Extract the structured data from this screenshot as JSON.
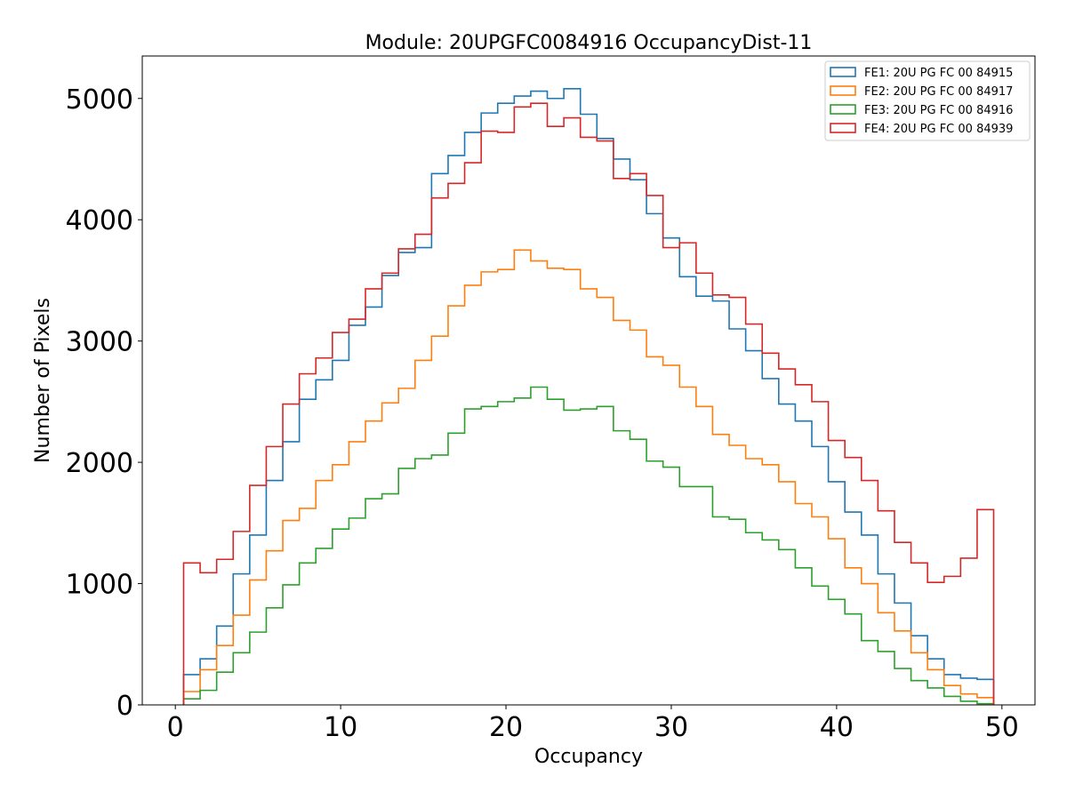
{
  "chart_data": {
    "type": "histogram",
    "title": "Module: 20UPGFC0084916 OccupancyDist-11",
    "xlabel": "Occupancy",
    "ylabel": "Number of Pixels",
    "xlim": [
      -2,
      52
    ],
    "ylim": [
      0,
      5350
    ],
    "xticks": [
      0,
      10,
      20,
      30,
      40,
      50
    ],
    "xtick_labels": [
      "0",
      "10",
      "20",
      "30",
      "40",
      "50"
    ],
    "yticks": [
      0,
      1000,
      2000,
      3000,
      4000,
      5000
    ],
    "ytick_labels": [
      "0",
      "1000",
      "2000",
      "3000",
      "4000",
      "5000"
    ],
    "bin_edges_start": 0.5,
    "bin_width": 1,
    "legend_location": "top-right",
    "series": [
      {
        "name": "FE1: 20U PG FC 00 84915",
        "color": "#1f77b4",
        "values": [
          250,
          380,
          650,
          1080,
          1400,
          1850,
          2170,
          2520,
          2680,
          2840,
          3130,
          3280,
          3540,
          3730,
          3770,
          4380,
          4530,
          4720,
          4880,
          4960,
          5020,
          5060,
          5000,
          5080,
          4870,
          4670,
          4500,
          4330,
          4050,
          3850,
          3530,
          3370,
          3330,
          3100,
          2920,
          2690,
          2480,
          2340,
          2130,
          1840,
          1590,
          1400,
          1080,
          840,
          570,
          380,
          250,
          220,
          210
        ]
      },
      {
        "name": "FE2: 20U PG FC 00 84917",
        "color": "#ff7f0e",
        "values": [
          110,
          290,
          490,
          740,
          1030,
          1270,
          1520,
          1620,
          1850,
          1980,
          2170,
          2340,
          2490,
          2610,
          2840,
          3040,
          3290,
          3460,
          3570,
          3590,
          3750,
          3660,
          3600,
          3590,
          3430,
          3360,
          3170,
          3090,
          2870,
          2800,
          2620,
          2460,
          2230,
          2140,
          2030,
          1980,
          1840,
          1660,
          1550,
          1370,
          1130,
          1000,
          760,
          610,
          430,
          290,
          160,
          90,
          60
        ]
      },
      {
        "name": "FE3: 20U PG FC 00 84916",
        "color": "#2ca02c",
        "values": [
          50,
          120,
          270,
          430,
          600,
          800,
          990,
          1170,
          1290,
          1450,
          1540,
          1700,
          1740,
          1950,
          2030,
          2060,
          2240,
          2440,
          2460,
          2500,
          2530,
          2620,
          2520,
          2430,
          2440,
          2460,
          2260,
          2190,
          2010,
          1960,
          1800,
          1800,
          1550,
          1530,
          1420,
          1360,
          1280,
          1130,
          980,
          870,
          750,
          530,
          440,
          300,
          200,
          140,
          70,
          30,
          10
        ]
      },
      {
        "name": "FE4: 20U PG FC 00 84939",
        "color": "#d62728",
        "values": [
          1170,
          1090,
          1200,
          1430,
          1810,
          2130,
          2480,
          2730,
          2860,
          3070,
          3180,
          3430,
          3560,
          3760,
          3880,
          4180,
          4300,
          4470,
          4730,
          4720,
          4930,
          4960,
          4770,
          4840,
          4680,
          4650,
          4340,
          4380,
          4200,
          3770,
          3810,
          3560,
          3380,
          3360,
          3140,
          2900,
          2770,
          2640,
          2500,
          2180,
          2040,
          1850,
          1600,
          1340,
          1170,
          1010,
          1060,
          1210,
          1610
        ]
      }
    ]
  }
}
